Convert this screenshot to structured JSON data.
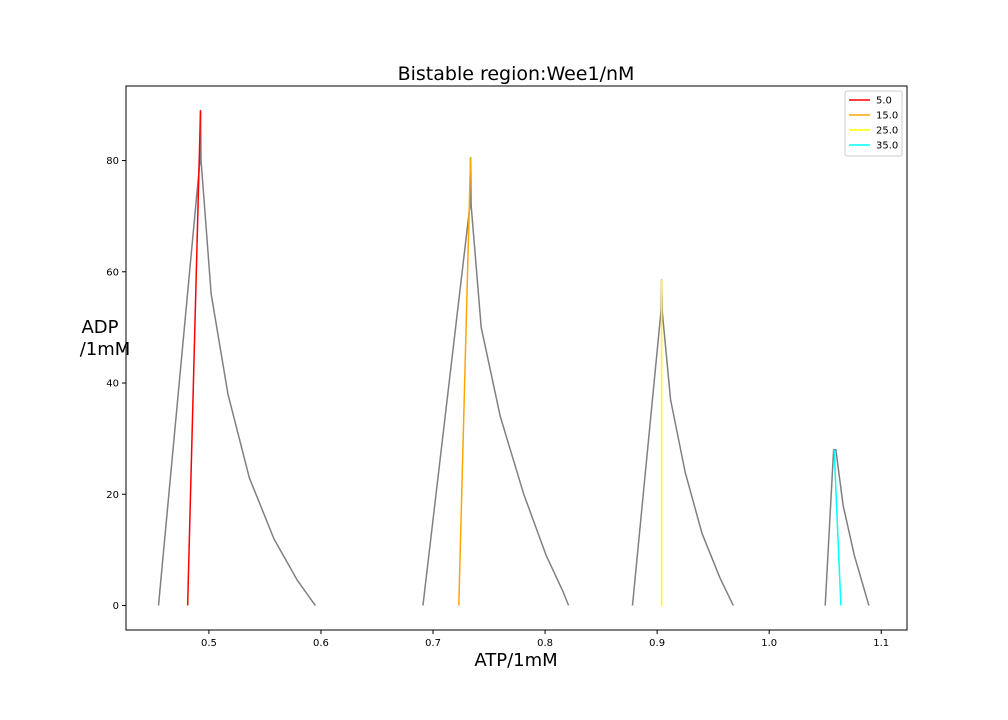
{
  "chart_data": {
    "type": "line",
    "title": "Bistable region:Wee1/nM",
    "xlabel": "ATP/1mM",
    "ylabel_lines": [
      "ADP",
      "/1mM"
    ],
    "xlim": [
      0.426,
      1.123
    ],
    "ylim": [
      -4.4,
      93.4
    ],
    "xticks": [
      0.5,
      0.6,
      0.7,
      0.8,
      0.9,
      1.0,
      1.1
    ],
    "xtick_labels": [
      "0.5",
      "0.6",
      "0.7",
      "0.8",
      "0.9",
      "1.0",
      "1.1"
    ],
    "yticks": [
      0,
      20,
      40,
      60,
      80
    ],
    "ytick_labels": [
      "0",
      "20",
      "40",
      "60",
      "80"
    ],
    "grid": false,
    "legend_position": "top-right",
    "series": [
      {
        "name": "5.0",
        "color": "#ff0000",
        "points": [
          [
            0.481,
            0
          ],
          [
            0.4925,
            89.0
          ]
        ],
        "boundary_color": "#808080",
        "boundary": [
          [
            0.455,
            0
          ],
          [
            0.492,
            80.0
          ],
          [
            0.4925,
            89.0
          ],
          [
            0.493,
            80.0
          ],
          [
            0.502,
            56.0
          ],
          [
            0.517,
            38.0
          ],
          [
            0.536,
            23.0
          ],
          [
            0.558,
            12.0
          ],
          [
            0.579,
            4.5
          ],
          [
            0.595,
            0
          ]
        ]
      },
      {
        "name": "15.0",
        "color": "#ffa500",
        "points": [
          [
            0.723,
            0
          ],
          [
            0.7335,
            80.5
          ]
        ],
        "boundary_color": "#808080",
        "boundary": [
          [
            0.691,
            0
          ],
          [
            0.733,
            72.0
          ],
          [
            0.7335,
            80.5
          ],
          [
            0.734,
            72.0
          ],
          [
            0.743,
            50.0
          ],
          [
            0.76,
            34.0
          ],
          [
            0.781,
            20.0
          ],
          [
            0.801,
            9.0
          ],
          [
            0.816,
            2.5
          ],
          [
            0.821,
            0
          ]
        ]
      },
      {
        "name": "25.0",
        "color": "#ffff00",
        "points": [
          [
            0.904,
            0
          ],
          [
            0.904,
            58.5
          ]
        ],
        "boundary_color": "#808080",
        "boundary": [
          [
            0.878,
            0
          ],
          [
            0.9035,
            53.0
          ],
          [
            0.904,
            58.5
          ],
          [
            0.9045,
            53.0
          ],
          [
            0.912,
            37.0
          ],
          [
            0.925,
            24.0
          ],
          [
            0.94,
            13.0
          ],
          [
            0.956,
            5.0
          ],
          [
            0.968,
            0
          ]
        ]
      },
      {
        "name": "35.0",
        "color": "#00ffff",
        "points": [
          [
            1.058,
            28.0
          ],
          [
            1.064,
            0
          ]
        ],
        "boundary_color": "#808080",
        "boundary": [
          [
            1.05,
            0
          ],
          [
            1.0575,
            28.0
          ],
          [
            1.0595,
            28.0
          ],
          [
            1.066,
            18.0
          ],
          [
            1.076,
            9.0
          ],
          [
            1.089,
            0
          ]
        ]
      }
    ]
  }
}
